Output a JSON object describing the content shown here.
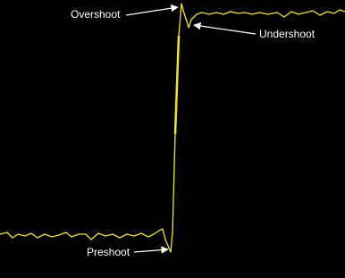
{
  "labels": {
    "overshoot": "Overshoot",
    "undershoot": "Undershoot",
    "preshoot": "Preshoot"
  }
}
